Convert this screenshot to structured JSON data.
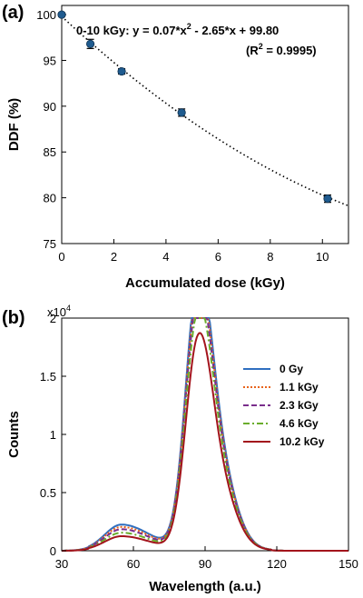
{
  "chart_data": [
    {
      "panel": "(a)",
      "type": "scatter",
      "xlabel": "Accumulated dose (kGy)",
      "ylabel": "DDF (%)",
      "xlim": [
        0,
        11
      ],
      "ylim": [
        75,
        101
      ],
      "xticks": [
        "0",
        "2",
        "4",
        "6",
        "8",
        "10"
      ],
      "yticks": [
        "75",
        "80",
        "85",
        "90",
        "95",
        "100"
      ],
      "points": [
        {
          "x": 0,
          "y": 100.0,
          "err": 0.2
        },
        {
          "x": 1.1,
          "y": 96.8,
          "err": 0.5
        },
        {
          "x": 2.3,
          "y": 93.8,
          "err": 0.3
        },
        {
          "x": 4.6,
          "y": 89.3,
          "err": 0.4
        },
        {
          "x": 10.2,
          "y": 79.9,
          "err": 0.4
        }
      ],
      "fit": {
        "a": 0.07,
        "b": -2.65,
        "c": 99.8,
        "x_range": [
          0,
          11
        ],
        "style": "dotted"
      },
      "annotation_line1": "0-10 kGy: y = 0.07*x",
      "annotation_line1_sup": "2",
      "annotation_line1_tail": " - 2.65*x + 99.80",
      "annotation_line2_pre": "(R",
      "annotation_line2_sup": "2",
      "annotation_line2_tail": " = 0.9995)",
      "marker_color": "#1f5b8f",
      "grid": false
    },
    {
      "panel": "(b)",
      "type": "line",
      "xlabel": "Wavelength (a.u.)",
      "ylabel": "Counts",
      "xlim": [
        30,
        150
      ],
      "ylim": [
        0,
        2
      ],
      "xticks": [
        "30",
        "60",
        "90",
        "120",
        "150"
      ],
      "yticks": [
        "0",
        "0.5",
        "1",
        "1.5",
        "2"
      ],
      "y_multiplier_base": "x10",
      "y_multiplier_exp": "4",
      "legend_position": "right",
      "grid": false,
      "series": [
        {
          "name": "0 Gy",
          "color": "#2f6fc0",
          "dash": "",
          "peak": 1.95,
          "low_peak": 0.22
        },
        {
          "name": "1.1 kGy",
          "color": "#e8641c",
          "dash": "2,2",
          "peak": 1.88,
          "low_peak": 0.2
        },
        {
          "name": "2.3 kGy",
          "color": "#7a2e8c",
          "dash": "6,3",
          "peak": 1.82,
          "low_peak": 0.18
        },
        {
          "name": "4.6 kGy",
          "color": "#6aad2c",
          "dash": "7,3,2,3",
          "peak": 1.72,
          "low_peak": 0.15
        },
        {
          "name": "10.2 kGy",
          "color": "#a3141c",
          "dash": "",
          "peak": 1.53,
          "low_peak": 0.12
        }
      ]
    }
  ],
  "panels": {
    "a_label": "(a)",
    "b_label": "(b)"
  }
}
